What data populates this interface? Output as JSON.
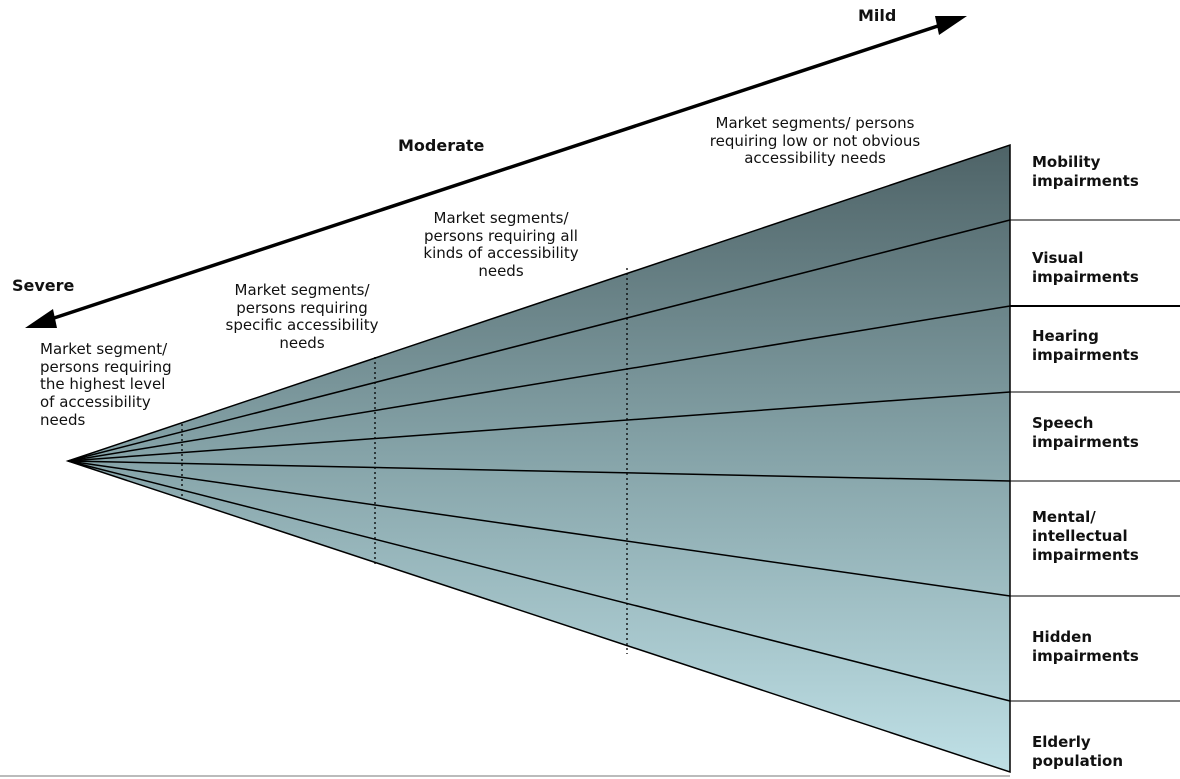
{
  "severity_axis": {
    "severe_label": "Severe",
    "moderate_label": "Moderate",
    "mild_label": "Mild"
  },
  "segments": [
    {
      "text": "Market segment/\npersons requiring\nthe highest level\nof accessibility\nneeds"
    },
    {
      "text": "Market segments/\npersons requiring\nspecific accessibility\nneeds"
    },
    {
      "text": "Market segments/\npersons requiring all\nkinds of accessibility\nneeds"
    },
    {
      "text": "Market segments/ persons\nrequiring low or not obvious\naccessibility needs"
    }
  ],
  "categories": [
    {
      "text": "Mobility\nimpairments"
    },
    {
      "text": "Visual\nimpairments"
    },
    {
      "text": "Hearing\nimpairments"
    },
    {
      "text": "Speech\nimpairments"
    },
    {
      "text": "Mental/\nintellectual\nimpairments"
    },
    {
      "text": "Hidden\nimpairments"
    },
    {
      "text": "Elderly\npopulation"
    }
  ],
  "colors": {
    "wedge_top": "#4e6367",
    "wedge_mid": "#86a4a9",
    "wedge_bottom": "#bfe0e6",
    "line": "#000000"
  }
}
